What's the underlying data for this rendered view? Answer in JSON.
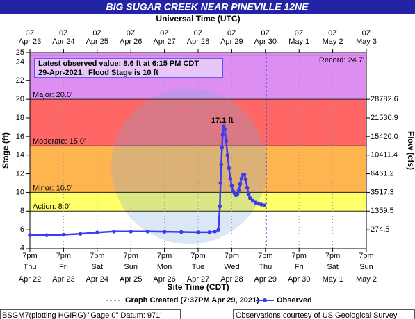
{
  "chart_data": {
    "type": "hydrograph",
    "title": "BIG SUGAR CREEK NEAR PINEVILLE 12NE",
    "top_axis_title": "Universal Time (UTC)",
    "x_axis_title": "Site Time (CDT)",
    "y_axis_title": "Stage (ft)",
    "y2_axis_title": "Flow (cfs)",
    "ylim": [
      4,
      25
    ],
    "yticks": [
      4,
      6,
      8,
      10,
      12,
      14,
      16,
      18,
      20,
      22,
      24,
      25
    ],
    "y2ticks": [
      {
        "stage": 6,
        "value": 274.5,
        "label": "274.5"
      },
      {
        "stage": 8,
        "value": 1359.5,
        "label": "1359.5"
      },
      {
        "stage": 10,
        "value": 3517.3,
        "label": "3517.3"
      },
      {
        "stage": 12,
        "value": 6461.2,
        "label": "6461.2"
      },
      {
        "stage": 14,
        "value": 10411.4,
        "label": "10411.4"
      },
      {
        "stage": 16,
        "value": 15420.0,
        "label": "15420.0"
      },
      {
        "stage": 18,
        "value": 21530.9,
        "label": "21530.9"
      },
      {
        "stage": 20,
        "value": 28782.6,
        "label": "28782.6"
      }
    ],
    "xlim": [
      "2021-04-22T19:00-05:00",
      "2021-05-02T19:00-05:00"
    ],
    "xticks": [
      {
        "value": "2021-04-22T19:00-05:00",
        "label": [
          "7pm",
          "Thu",
          "Apr 22"
        ]
      },
      {
        "value": "2021-04-23T19:00-05:00",
        "label": [
          "7pm",
          "Fri",
          "Apr 23"
        ]
      },
      {
        "value": "2021-04-24T19:00-05:00",
        "label": [
          "7pm",
          "Sat",
          "Apr 24"
        ]
      },
      {
        "value": "2021-04-25T19:00-05:00",
        "label": [
          "7pm",
          "Sun",
          "Apr 25"
        ]
      },
      {
        "value": "2021-04-26T19:00-05:00",
        "label": [
          "7pm",
          "Mon",
          "Apr 26"
        ]
      },
      {
        "value": "2021-04-27T19:00-05:00",
        "label": [
          "7pm",
          "Tue",
          "Apr 27"
        ]
      },
      {
        "value": "2021-04-28T19:00-05:00",
        "label": [
          "7pm",
          "Wed",
          "Apr 28"
        ]
      },
      {
        "value": "2021-04-29T19:00-05:00",
        "label": [
          "7pm",
          "Thu",
          "Apr 29"
        ]
      },
      {
        "value": "2021-04-30T19:00-05:00",
        "label": [
          "7pm",
          "Fri",
          "Apr 30"
        ]
      },
      {
        "value": "2021-05-01T19:00-05:00",
        "label": [
          "7pm",
          "Sat",
          "May 1"
        ]
      },
      {
        "value": "2021-05-02T19:00-05:00",
        "label": [
          "7pm",
          "Sun",
          "May 2"
        ]
      }
    ],
    "x2ticks": [
      {
        "value": "2021-04-23T00:00Z",
        "label": [
          "0Z",
          "Apr 23"
        ]
      },
      {
        "value": "2021-04-24T00:00Z",
        "label": [
          "0Z",
          "Apr 24"
        ]
      },
      {
        "value": "2021-04-25T00:00Z",
        "label": [
          "0Z",
          "Apr 25"
        ]
      },
      {
        "value": "2021-04-26T00:00Z",
        "label": [
          "0Z",
          "Apr 26"
        ]
      },
      {
        "value": "2021-04-27T00:00Z",
        "label": [
          "0Z",
          "Apr 27"
        ]
      },
      {
        "value": "2021-04-28T00:00Z",
        "label": [
          "0Z",
          "Apr 28"
        ]
      },
      {
        "value": "2021-04-29T00:00Z",
        "label": [
          "0Z",
          "Apr 29"
        ]
      },
      {
        "value": "2021-04-30T00:00Z",
        "label": [
          "0Z",
          "Apr 30"
        ]
      },
      {
        "value": "2021-05-01T00:00Z",
        "label": [
          "0Z",
          "May 1"
        ]
      },
      {
        "value": "2021-05-02T00:00Z",
        "label": [
          "0Z",
          "May 2"
        ]
      },
      {
        "value": "2021-05-03T00:00Z",
        "label": [
          "0Z",
          "May 3"
        ]
      }
    ],
    "grid": true,
    "flood_stages": [
      {
        "label": "Action: 8.0'",
        "value": 8,
        "color": "#ffff66"
      },
      {
        "label": "Minor: 10.0'",
        "value": 10,
        "color": "#ffb54f"
      },
      {
        "label": "Moderate: 15.0'",
        "value": 15,
        "color": "#ff6666"
      },
      {
        "label": "Major: 20.0'",
        "value": 20,
        "color": "#dc8ef2"
      }
    ],
    "record": {
      "label": "Record: 24.7'",
      "value": 24.7
    },
    "annotation": [
      "Latest observed value: 8.6 ft at 6:15 PM CDT",
      "29-Apr-2021.",
      "Flood Stage is 10 ft"
    ],
    "peak": {
      "x": "2021-04-28T13:15-05:00",
      "value": 17.1,
      "label": "17.1 ft"
    },
    "graph_created": {
      "x": "2021-04-29T19:37-05:00",
      "label": "Graph Created (7:37PM Apr 29, 2021)",
      "color": "#3333ee"
    },
    "series": [
      {
        "name": "Observed",
        "color": "#3b3bf0",
        "x": [
          "2021-04-22T19:00-05:00",
          "2021-04-23T07:00-05:00",
          "2021-04-23T19:00-05:00",
          "2021-04-24T07:00-05:00",
          "2021-04-24T19:00-05:00",
          "2021-04-25T07:00-05:00",
          "2021-04-25T19:00-05:00",
          "2021-04-26T07:00-05:00",
          "2021-04-26T19:00-05:00",
          "2021-04-27T07:00-05:00",
          "2021-04-27T19:00-05:00",
          "2021-04-28T03:00-05:00",
          "2021-04-28T07:00-05:00",
          "2021-04-28T09:30-05:00",
          "2021-04-28T10:30-05:00",
          "2021-04-28T11:00-05:00",
          "2021-04-28T11:30-05:00",
          "2021-04-28T12:00-05:00",
          "2021-04-28T12:30-05:00",
          "2021-04-28T13:15-05:00",
          "2021-04-28T14:00-05:00",
          "2021-04-28T15:00-05:00",
          "2021-04-28T16:00-05:00",
          "2021-04-28T17:00-05:00",
          "2021-04-28T18:00-05:00",
          "2021-04-28T19:00-05:00",
          "2021-04-28T20:00-05:00",
          "2021-04-28T21:00-05:00",
          "2021-04-28T22:00-05:00",
          "2021-04-28T23:00-05:00",
          "2021-04-29T00:00-05:00",
          "2021-04-29T01:00-05:00",
          "2021-04-29T02:00-05:00",
          "2021-04-29T03:00-05:00",
          "2021-04-29T04:00-05:00",
          "2021-04-29T05:00-05:00",
          "2021-04-29T06:00-05:00",
          "2021-04-29T07:00-05:00",
          "2021-04-29T08:00-05:00",
          "2021-04-29T10:00-05:00",
          "2021-04-29T12:00-05:00",
          "2021-04-29T14:00-05:00",
          "2021-04-29T16:00-05:00",
          "2021-04-29T18:15-05:00"
        ],
        "values": [
          5.4,
          5.4,
          5.45,
          5.55,
          5.7,
          5.8,
          5.8,
          5.8,
          5.78,
          5.75,
          5.72,
          5.72,
          5.8,
          6.0,
          8.5,
          11,
          13,
          14.8,
          16.2,
          17.1,
          16.8,
          15.5,
          14,
          12.6,
          11.5,
          10.7,
          10.1,
          9.9,
          9.7,
          9.8,
          10.2,
          10.9,
          11.5,
          11.9,
          11.9,
          11.4,
          10.5,
          9.8,
          9.4,
          9.1,
          8.9,
          8.8,
          8.7,
          8.6
        ]
      }
    ],
    "footer_left": "BSGM7(plotting HGIRG) \"Gage 0\" Datum: 971'",
    "footer_right": "Observations courtesy of US Geological Survey"
  }
}
